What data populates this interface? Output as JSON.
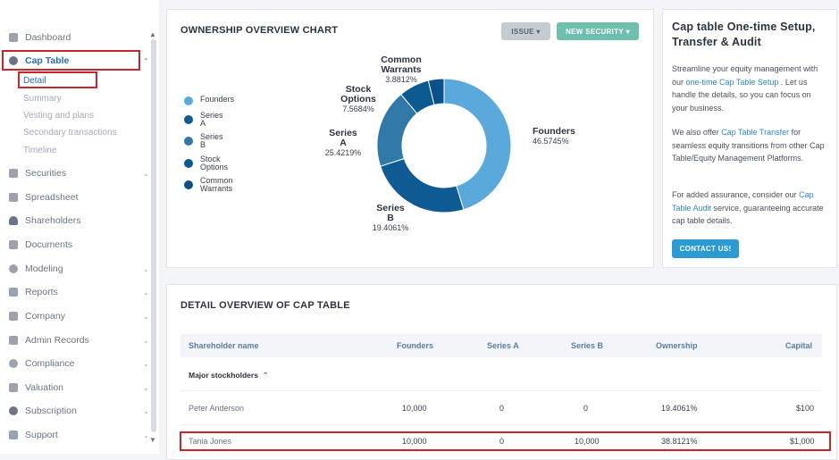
{
  "sidebar": {
    "items": [
      {
        "label": "Dashboard",
        "icon": "dashboard-icon"
      },
      {
        "label": "Cap Table",
        "icon": "pie-chart-icon"
      },
      {
        "label": "Securities",
        "icon": "securities-icon"
      },
      {
        "label": "Spreadsheet",
        "icon": "spreadsheet-icon"
      },
      {
        "label": "Shareholders",
        "icon": "person-icon"
      },
      {
        "label": "Documents",
        "icon": "folder-icon"
      },
      {
        "label": "Modeling",
        "icon": "bulb-icon"
      },
      {
        "label": "Reports",
        "icon": "reports-icon"
      },
      {
        "label": "Company",
        "icon": "company-icon"
      },
      {
        "label": "Admin Records",
        "icon": "admin-icon"
      },
      {
        "label": "Compliance",
        "icon": "shield-icon"
      },
      {
        "label": "Valuation",
        "icon": "valuation-icon"
      },
      {
        "label": "Subscription",
        "icon": "subscription-icon"
      },
      {
        "label": "Support",
        "icon": "support-icon"
      }
    ],
    "cap_table_sub": [
      "Detail",
      "Summary",
      "Vesting and plans",
      "Secondary transactions",
      "Timeline"
    ]
  },
  "ownership": {
    "title": "OWNERSHIP OVERVIEW CHART",
    "issue_label": "ISSUE",
    "new_security_label": "NEW SECURITY",
    "legend": [
      "Founders",
      "Series A",
      "Series B",
      "Stock Options",
      "Common Warrants"
    ],
    "colors": [
      "#5aa9dd",
      "#0f5b94",
      "#2f78a8",
      "#0c5a92",
      "#0a5189"
    ]
  },
  "chart_data": {
    "type": "pie",
    "categories": [
      "Founders",
      "Series A",
      "Series B",
      "Stock Options",
      "Common Warrants"
    ],
    "values": [
      46.5745,
      25.4219,
      19.4061,
      7.5684,
      3.8812
    ],
    "labels": {
      "founders": {
        "name": "Founders",
        "pct": "46.5745%"
      },
      "series_a": {
        "name1": "Series",
        "name2": "A",
        "pct": "25.4219%"
      },
      "series_b": {
        "name1": "Series",
        "name2": "B",
        "pct": "19.4061%"
      },
      "stock_options": {
        "name1": "Stock",
        "name2": "Options",
        "pct": "7.5684%"
      },
      "common_warrants": {
        "name1": "Common",
        "name2": "Warrants",
        "pct": "3.8812%"
      }
    }
  },
  "setup": {
    "title_line1": "Cap table One-time Setup,",
    "title_line2": "Transfer & Audit",
    "p1_a": "Streamline your equity management with our ",
    "p1_link": "one-time Cap Table Setup",
    "p1_b": " . Let us handle the details, so you can focus on your business.",
    "p2_a": "We also offer ",
    "p2_link": "Cap Table Transfer",
    "p2_b": " for seamless equity transitions from other Cap Table/Equity Management Platforms.",
    "p3_a": "For added assurance, consider our ",
    "p3_link": "Cap Table Audit",
    "p3_b": " service, guaranteeing accurate cap table details.",
    "contact_label": "CONTACT US!"
  },
  "detail": {
    "title": "DETAIL OVERVIEW OF CAP TABLE",
    "columns": [
      "Shareholder name",
      "Founders",
      "Series A",
      "Series B",
      "Ownership",
      "Capital"
    ],
    "group_label": "Major stockholders",
    "rows": [
      {
        "name": "Peter Anderson",
        "founders": "10,000",
        "series_a": "0",
        "series_b": "0",
        "ownership": "19.4061%",
        "capital": "$100"
      },
      {
        "name": "Tania Jones",
        "founders": "10,000",
        "series_a": "0",
        "series_b": "10,000",
        "ownership": "38.8121%",
        "capital": "$1,000"
      }
    ]
  }
}
